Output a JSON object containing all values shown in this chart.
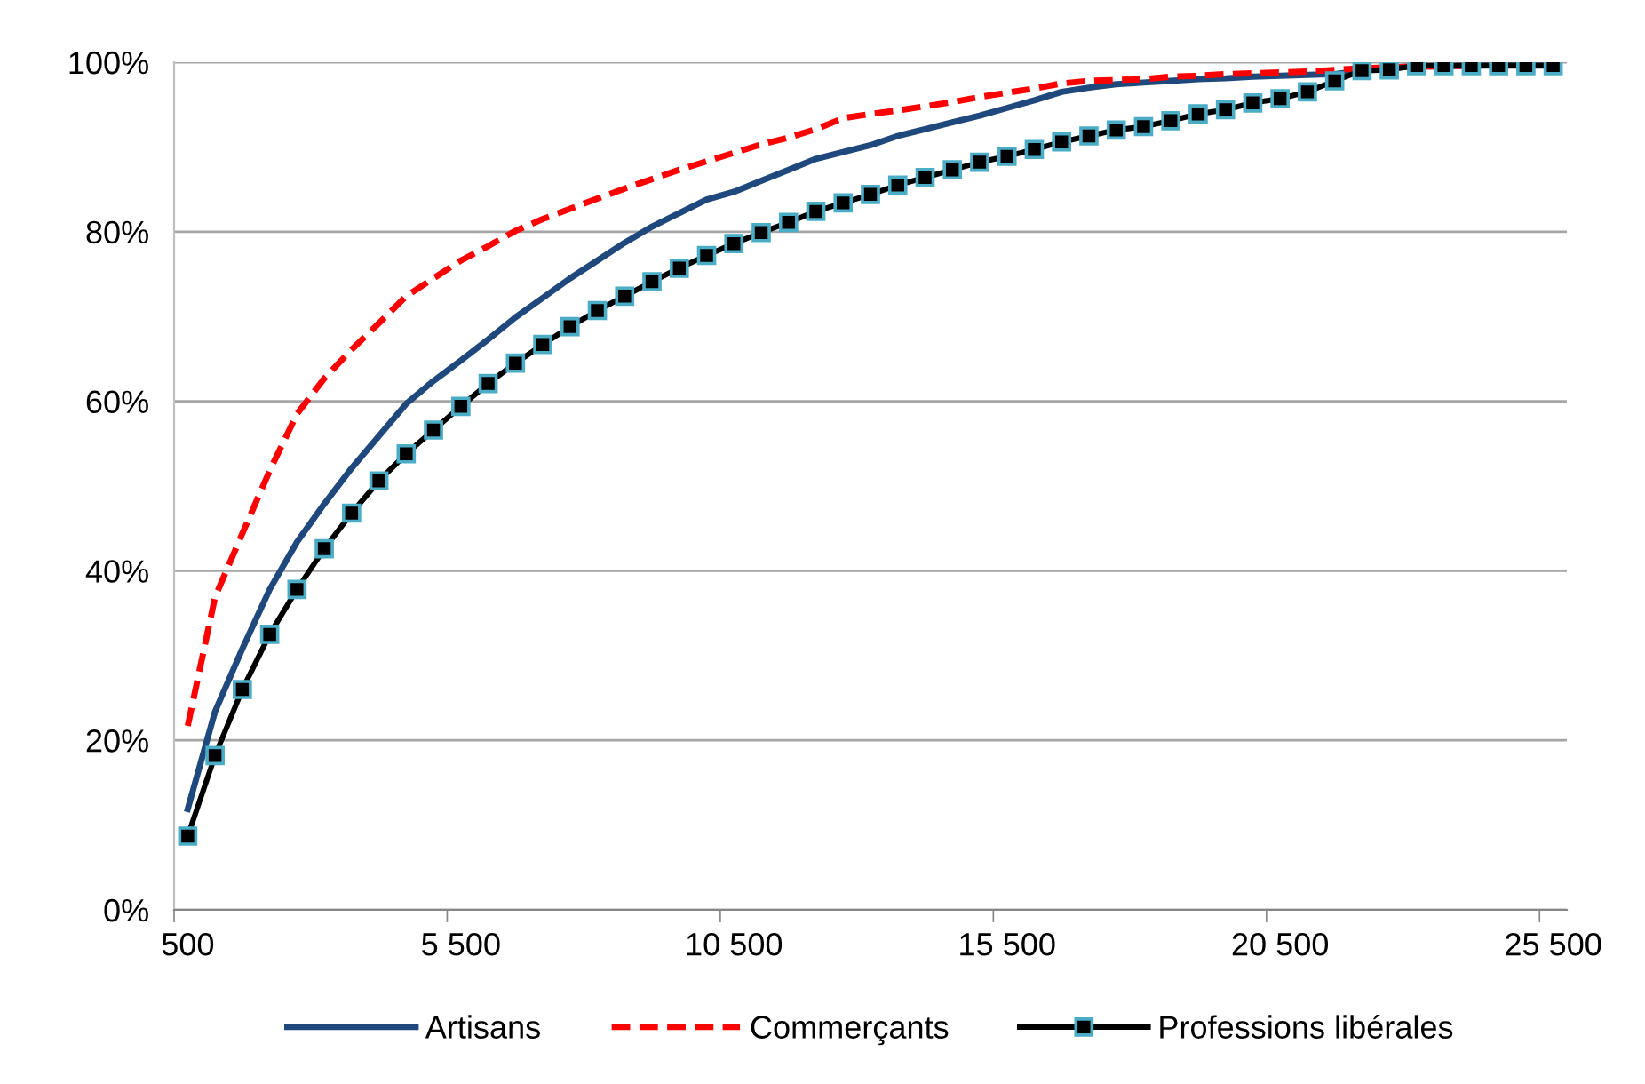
{
  "chart_data": {
    "type": "line",
    "categories": [
      "500",
      null,
      null,
      null,
      null,
      null,
      null,
      null,
      null,
      null,
      "5 500",
      null,
      null,
      null,
      null,
      null,
      null,
      null,
      null,
      null,
      "10 500",
      null,
      null,
      null,
      null,
      null,
      null,
      null,
      null,
      null,
      "15 500",
      null,
      null,
      null,
      null,
      null,
      null,
      null,
      null,
      null,
      "20 500",
      null,
      null,
      null,
      null,
      null,
      null,
      null,
      null,
      null,
      "25 500"
    ],
    "series": [
      {
        "name": "Artisans",
        "color": "#1f497d",
        "line_style": "solid",
        "marker": "none",
        "values": [
          11.9,
          23.4,
          30.8,
          37.8,
          43.4,
          47.9,
          52.1,
          55.9,
          59.7,
          62.4,
          64.8,
          67.3,
          69.9,
          72.2,
          74.5,
          76.6,
          78.7,
          80.6,
          82.2,
          83.8,
          84.7,
          86.0,
          87.3,
          88.6,
          89.4,
          90.2,
          91.3,
          92.1,
          92.9,
          93.7,
          94.6,
          95.5,
          96.5,
          97.0,
          97.4,
          97.6,
          97.8,
          98.0,
          98.1,
          98.3,
          98.4,
          98.5,
          98.6,
          99.0,
          99.4,
          99.5,
          99.5,
          99.6,
          99.6,
          99.6,
          99.6
        ]
      },
      {
        "name": "Commerçants",
        "color": "#ff0000",
        "line_style": "dashed",
        "marker": "none",
        "values": [
          21.7,
          36.9,
          44.4,
          51.8,
          58.5,
          62.7,
          66.1,
          69.2,
          72.4,
          74.5,
          76.6,
          78.3,
          80.1,
          81.5,
          82.7,
          83.9,
          85.1,
          86.2,
          87.3,
          88.3,
          89.3,
          90.3,
          91.1,
          92.1,
          93.4,
          93.9,
          94.3,
          94.8,
          95.3,
          95.9,
          96.4,
          96.9,
          97.5,
          97.8,
          97.9,
          98.0,
          98.3,
          98.4,
          98.6,
          98.7,
          98.8,
          98.9,
          99.1,
          99.3,
          99.4,
          99.5,
          99.5,
          99.6,
          null,
          null,
          null
        ]
      },
      {
        "name": "Professions libérales",
        "color": "#000000",
        "line_style": "solid",
        "marker": "square",
        "values": [
          8.7,
          18.2,
          26.0,
          32.5,
          37.8,
          42.6,
          46.8,
          50.6,
          53.8,
          56.6,
          59.4,
          62.1,
          64.5,
          66.7,
          68.8,
          70.7,
          72.4,
          74.1,
          75.7,
          77.2,
          78.6,
          79.9,
          81.1,
          82.4,
          83.4,
          84.4,
          85.5,
          86.4,
          87.3,
          88.2,
          88.9,
          89.7,
          90.6,
          91.3,
          92.0,
          92.4,
          93.1,
          93.9,
          94.4,
          95.2,
          95.7,
          96.5,
          97.8,
          99.0,
          99.1,
          99.6,
          99.6,
          99.6,
          99.6,
          99.6,
          99.6
        ]
      }
    ],
    "ylim": [
      0,
      100
    ],
    "yticks": [
      {
        "value": 0,
        "label": "0%"
      },
      {
        "value": 20,
        "label": "20%"
      },
      {
        "value": 40,
        "label": "40%"
      },
      {
        "value": 60,
        "label": "60%"
      },
      {
        "value": 80,
        "label": "80%"
      },
      {
        "value": 100,
        "label": "100%"
      }
    ],
    "grid": "y",
    "legend": "bottom"
  }
}
